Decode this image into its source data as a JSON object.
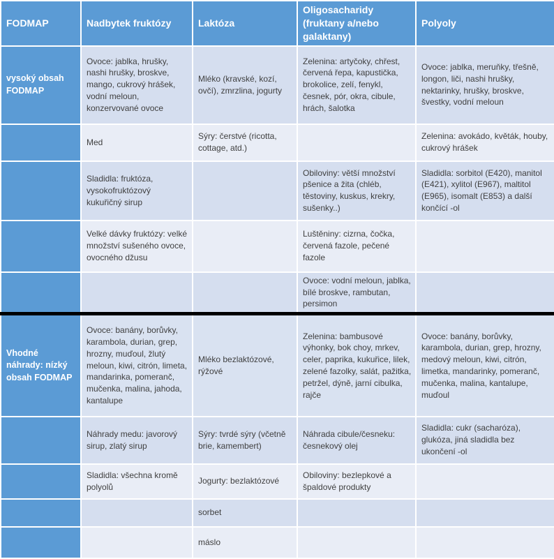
{
  "palette": {
    "header_blue": "#5b9bd5",
    "band_dark": "#d5deef",
    "band_light": "#e9edf6",
    "divider_black": "#000000",
    "text_body": "#3f3f3f",
    "text_header": "#ffffff"
  },
  "header": {
    "columns": [
      "FODMAP",
      "Nadbytek fruktózy",
      "Laktóza",
      "Oligosacharidy (fruktany a/nebo galaktany)",
      "Polyoly"
    ]
  },
  "sections": [
    {
      "label": "vysoký obsah FODMAP",
      "rows": [
        {
          "shade": "dark",
          "cells": [
            "Ovoce: jablka, hrušky, nashi hrušky, broskve, mango, cukrový hrášek, vodní meloun, konzervované ovoce",
            "Mléko (kravské, kozí, ovčí), zmrzlina, jogurty",
            "Zelenina: artyčoky, chřest, červená řepa, kapustička, brokolice, zelí, fenykl, česnek, pór, okra, cibule, hrách, šalotka",
            "Ovoce: jablka, meruňky, třešně, longon, liči, nashi hrušky, nektarinky, hrušky, broskve, švestky, vodní meloun"
          ]
        },
        {
          "shade": "light",
          "cells": [
            "Med",
            "Sýry: čerstvé (ricotta, cottage, atd.)",
            "",
            "Zelenina: avokádo, květák, houby, cukrový hrášek"
          ]
        },
        {
          "shade": "dark",
          "cells": [
            "Sladidla: fruktóza, vysokofruktózový kukuřičný sirup",
            "",
            "Obiloviny: větší množství pšenice a žita (chléb, těstoviny, kuskus, krekry, sušenky..)",
            "Sladidla: sorbitol (E420), manitol (E421), xylitol (E967), maltitol (E965), isomalt (E853) a další končící -ol"
          ]
        },
        {
          "shade": "light",
          "cells": [
            "Velké dávky fruktózy: velké množství sušeného ovoce, ovocného džusu",
            "",
            "Luštěniny: cizrna, čočka, červená fazole, pečené fazole",
            ""
          ]
        },
        {
          "shade": "dark",
          "cells": [
            "",
            "",
            "Ovoce: vodní meloun, jablka, bílé broskve, rambutan, persimon",
            ""
          ]
        }
      ]
    },
    {
      "label": "Vhodné náhrady: nízký obsah FODMAP",
      "rows": [
        {
          "shade": "dark2",
          "cells": [
            "Ovoce: banány, borůvky, karambola, durian, grep, hrozny, muďoul, žlutý meloun, kiwi, citrón, limeta, mandarinka, pomeranč, mučenka, malina, jahoda, kantalupe",
            "Mléko bezlaktózové, rýžové",
            "Zelenina: bambusové výhonky, bok choy, mrkev, celer, paprika, kukuřice, lilek, zelené fazolky, salát, pažitka, petržel, dýně, jarní cibulka, rajče",
            "Ovoce: banány, borůvky, karambola, durian, grep, hrozny, medový meloun, kiwi, citrón, limetka, mandarinky, pomeranč, mučenka, malina, kantalupe, muďoul"
          ]
        },
        {
          "shade": "dark",
          "cells": [
            "Náhrady medu: javorový sirup, zlatý sirup",
            "Sýry: tvrdé sýry (včetně brie, kamembert)",
            "Náhrada cibule/česneku: česnekový olej",
            "Sladidla: cukr (sacharóza), glukóza, jiná sladidla bez ukončení -ol"
          ]
        },
        {
          "shade": "light",
          "cells": [
            "Sladidla: všechna kromě polyolů",
            "Jogurty: bezlaktózové",
            "Obiloviny: bezlepkové a špaldové produkty",
            ""
          ]
        },
        {
          "shade": "dark",
          "cells": [
            "",
            "sorbet",
            "",
            ""
          ]
        },
        {
          "shade": "light",
          "cells": [
            "",
            "máslo",
            "",
            ""
          ]
        }
      ]
    }
  ]
}
